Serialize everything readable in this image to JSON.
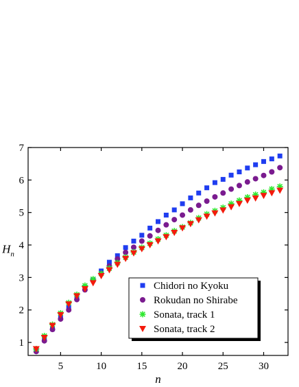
{
  "chart_data": {
    "type": "scatter",
    "xlabel": "n",
    "ylabel": "H",
    "ylabel_sub": "n",
    "xlim": [
      1,
      33
    ],
    "ylim": [
      0.6,
      7
    ],
    "xticks": [
      5,
      10,
      15,
      20,
      25,
      30
    ],
    "yticks": [
      1,
      2,
      3,
      4,
      5,
      6,
      7
    ],
    "legend_position": "bottom-right",
    "grid": false,
    "x": [
      2,
      3,
      4,
      5,
      6,
      7,
      8,
      9,
      10,
      11,
      12,
      13,
      14,
      15,
      16,
      17,
      18,
      19,
      20,
      21,
      22,
      23,
      24,
      25,
      26,
      27,
      28,
      29,
      30,
      31,
      32
    ],
    "series": [
      {
        "name": "Chidori no Kyoku",
        "marker": "square",
        "color": "#1f3df0",
        "values": [
          0.78,
          1.12,
          1.42,
          1.78,
          2.07,
          2.37,
          2.7,
          2.93,
          3.2,
          3.47,
          3.67,
          3.92,
          4.12,
          4.3,
          4.52,
          4.72,
          4.92,
          5.08,
          5.27,
          5.45,
          5.6,
          5.76,
          5.92,
          6.02,
          6.15,
          6.25,
          6.37,
          6.47,
          6.57,
          6.65,
          6.74
        ]
      },
      {
        "name": "Rokudan no Shirabe",
        "marker": "circle",
        "color": "#7a1b8f",
        "values": [
          0.72,
          1.05,
          1.4,
          1.72,
          2.0,
          2.32,
          2.62,
          2.9,
          3.12,
          3.35,
          3.57,
          3.77,
          3.93,
          4.12,
          4.28,
          4.45,
          4.62,
          4.78,
          4.92,
          5.08,
          5.22,
          5.35,
          5.48,
          5.6,
          5.72,
          5.83,
          5.94,
          6.04,
          6.14,
          6.25,
          6.38
        ]
      },
      {
        "name": "Sonata, track 1",
        "marker": "asterisk",
        "color": "#2ee82e",
        "values": [
          0.8,
          1.2,
          1.55,
          1.9,
          2.22,
          2.47,
          2.75,
          2.95,
          3.12,
          3.28,
          3.45,
          3.62,
          3.78,
          3.92,
          4.05,
          4.18,
          4.3,
          4.43,
          4.55,
          4.68,
          4.83,
          4.95,
          5.05,
          5.15,
          5.27,
          5.37,
          5.47,
          5.55,
          5.62,
          5.72,
          5.8
        ]
      },
      {
        "name": "Sonata, track 2",
        "marker": "triangle-down",
        "color": "#f41a0c",
        "values": [
          0.8,
          1.15,
          1.52,
          1.85,
          2.18,
          2.43,
          2.65,
          2.83,
          3.05,
          3.23,
          3.4,
          3.58,
          3.75,
          3.88,
          4.0,
          4.12,
          4.25,
          4.38,
          4.52,
          4.65,
          4.77,
          4.88,
          4.98,
          5.07,
          5.17,
          5.27,
          5.37,
          5.44,
          5.52,
          5.6,
          5.68
        ]
      }
    ]
  }
}
